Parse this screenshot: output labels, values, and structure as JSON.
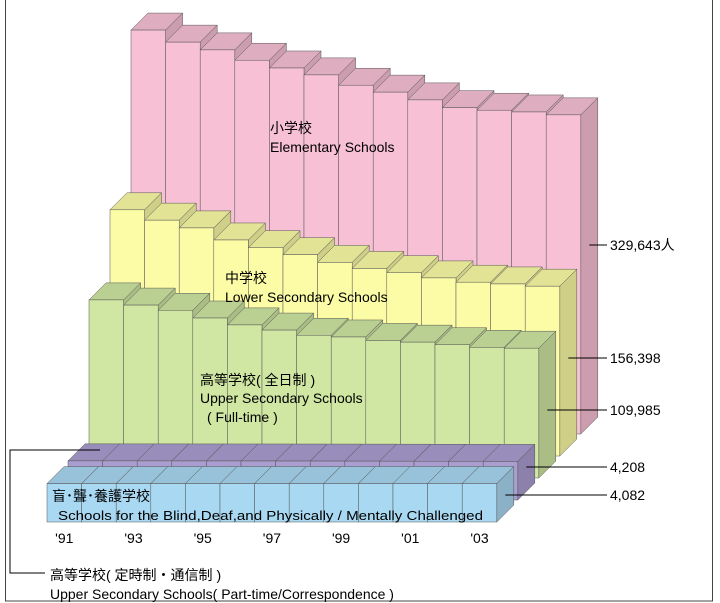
{
  "chart_data": {
    "type": "bar3d",
    "categories": [
      "'91",
      null,
      "'93",
      null,
      "'95",
      null,
      "'97",
      null,
      "'99",
      null,
      "'01",
      null,
      "'03"
    ],
    "series": [
      {
        "label_lines": [
          "小学校",
          "Elementary Schools"
        ],
        "color": "#f7c0d4",
        "values": [
          428000,
          414000,
          405000,
          393000,
          384000,
          376000,
          364000,
          356000,
          347000,
          338000,
          335000,
          333000,
          329643
        ],
        "value_labels": [
          null,
          null,
          null,
          null,
          null,
          null,
          null,
          null,
          null,
          null,
          null,
          null,
          "329,643人"
        ]
      },
      {
        "label_lines": [
          "中学校",
          "Lower Secondary Schools"
        ],
        "color": "#fcfca6",
        "values": [
          245000,
          233000,
          224000,
          210000,
          201000,
          193000,
          184000,
          177000,
          172000,
          166000,
          161000,
          159000,
          156398
        ],
        "value_labels": [
          null,
          null,
          null,
          null,
          null,
          null,
          null,
          null,
          null,
          null,
          null,
          null,
          "156,398"
        ]
      },
      {
        "label_lines": [
          "高等学校( 全日制 )",
          "Upper Secondary Schools",
          "( Full-time )"
        ],
        "color": "#cfe7a2",
        "values": [
          166000,
          160000,
          154000,
          145000,
          137000,
          131000,
          125000,
          123000,
          119000,
          117000,
          114000,
          111000,
          109985
        ],
        "value_labels": [
          null,
          null,
          null,
          null,
          null,
          null,
          null,
          null,
          null,
          null,
          null,
          null,
          "109,985"
        ]
      },
      {
        "label_lines": [
          "高等学校( 定時制・通信制 )",
          "Upper Secondary Schools( Part-time/Correspondence )"
        ],
        "color": "#aa9dd0",
        "values": [
          4800,
          4780,
          4750,
          4700,
          4680,
          4650,
          4600,
          4550,
          4500,
          4420,
          4350,
          4280,
          4208
        ],
        "value_labels": [
          null,
          null,
          null,
          null,
          null,
          null,
          null,
          null,
          null,
          null,
          null,
          null,
          "4,208"
        ]
      },
      {
        "label_lines": [
          "盲･聾･養護学校",
          "Schools for the Blind,Deaf,and Physically / Mentally Challenged"
        ],
        "color": "#a9d8f2",
        "values": [
          3900,
          3920,
          3950,
          3970,
          3990,
          4000,
          4020,
          4030,
          4040,
          4050,
          4060,
          4070,
          4082
        ],
        "value_labels": [
          null,
          null,
          null,
          null,
          null,
          null,
          null,
          null,
          null,
          null,
          null,
          null,
          "4,082"
        ]
      }
    ]
  }
}
